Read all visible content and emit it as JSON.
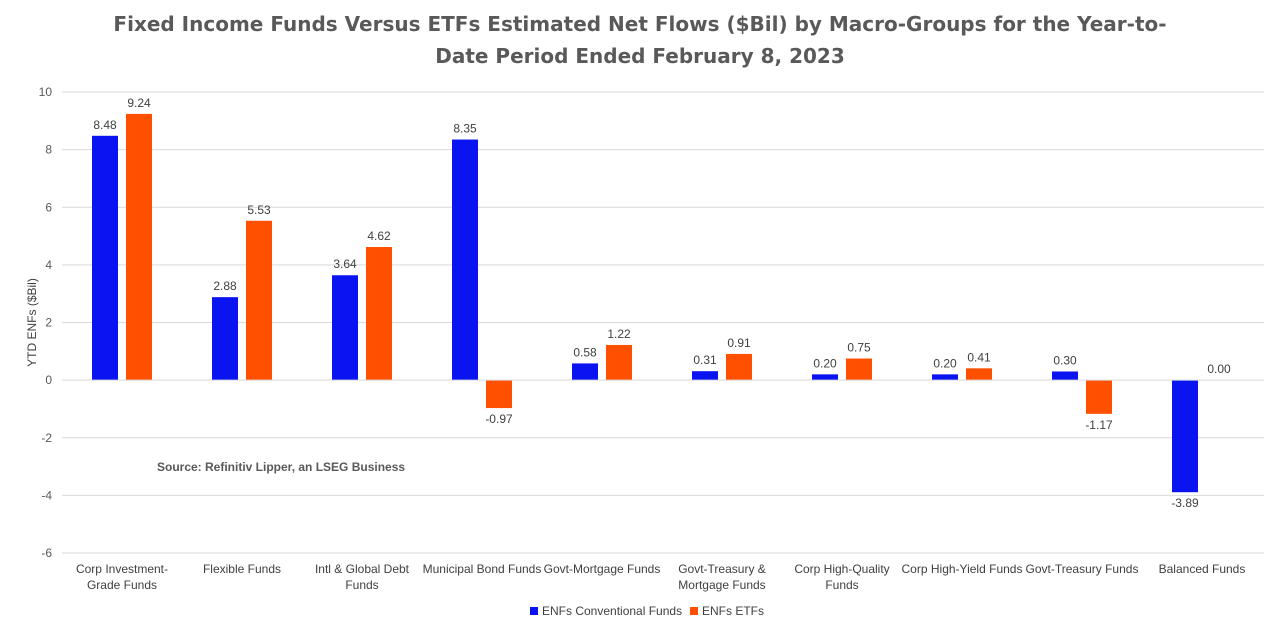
{
  "chart_data": {
    "type": "bar",
    "title_lines": [
      "Fixed Income Funds Versus ETFs Estimated Net Flows ($Bil) by Macro-Groups for the Year-to-",
      "Date Period Ended February 8, 2023"
    ],
    "ylabel": "YTD ENFs ($Bil)",
    "xlabel": "",
    "ylim": [
      -6,
      10
    ],
    "yticks": [
      10,
      8,
      6,
      4,
      2,
      0,
      -2,
      -4,
      -6
    ],
    "grid": true,
    "legend_position": "bottom",
    "annotation": "Source: Refinitiv Lipper, an LSEG Business",
    "categories": [
      [
        "Corp Investment-",
        "Grade Funds"
      ],
      [
        "Flexible Funds"
      ],
      [
        "Intl & Global Debt",
        "Funds"
      ],
      [
        "Municipal Bond Funds"
      ],
      [
        "Govt-Mortgage Funds"
      ],
      [
        "Govt-Treasury &",
        "Mortgage Funds"
      ],
      [
        "Corp High-Quality",
        "Funds"
      ],
      [
        "Corp High-Yield Funds"
      ],
      [
        "Govt-Treasury Funds"
      ],
      [
        "Balanced Funds"
      ]
    ],
    "series": [
      {
        "name": "ENFs Conventional Funds",
        "color": "#0a14f0",
        "values": [
          8.48,
          2.88,
          3.64,
          8.35,
          0.58,
          0.31,
          0.2,
          0.2,
          0.3,
          -3.89
        ],
        "labels": [
          "8.48",
          "2.88",
          "3.64",
          "8.35",
          "0.58",
          "0.31",
          "0.20",
          "0.20",
          "0.30",
          "-3.89"
        ]
      },
      {
        "name": "ENFs ETFs",
        "color": "#ff5000",
        "values": [
          9.24,
          5.53,
          4.62,
          -0.97,
          1.22,
          0.91,
          0.75,
          0.41,
          -1.17,
          0.0
        ],
        "labels": [
          "9.24",
          "5.53",
          "4.62",
          "-0.97",
          "1.22",
          "0.91",
          "0.75",
          "0.41",
          "-1.17",
          "0.00"
        ]
      }
    ]
  }
}
